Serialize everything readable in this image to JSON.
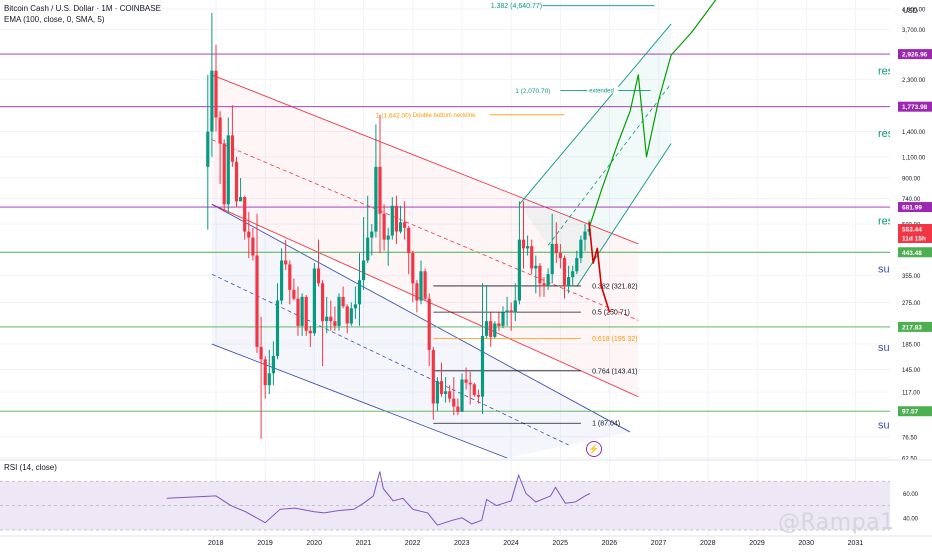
{
  "header": {
    "symbol_line": "Bitcoin Cash / U.S. Dollar · 1M · COINBASE",
    "indicator_line": "EMA (100, close, 0, SMA, 5)"
  },
  "rsi_label": "RSI (14, close)",
  "price_axis_unit": "USD",
  "watermark": "@Rampa1",
  "colors": {
    "up": "#089981",
    "down": "#f23645",
    "resistance": "#9c27b0",
    "support": "#4caf50",
    "fib_golden": "#ff9800",
    "channel_green": "#089981",
    "channel_red": "#f23645",
    "channel_blue": "#3f51b5",
    "projection_up": "#00a000",
    "projection_down": "#d50000",
    "rsi_line": "#7e57c2",
    "rsi_band": "#ede7f6"
  },
  "chart_data": {
    "type": "candlestick",
    "scale": "log",
    "ylim": [
      62.5,
      4900
    ],
    "x_axis_years": [
      "2018",
      "2019",
      "2020",
      "2021",
      "2022",
      "2023",
      "2024",
      "2025",
      "2026",
      "2027",
      "2028",
      "2029",
      "2030",
      "2031"
    ],
    "y_ticks": [
      "4,500.00",
      "3,700.00",
      "2,300.00",
      "1,400.00",
      "1,100.00",
      "900.00",
      "740.00",
      "580.00",
      "355.00",
      "275.00",
      "185.00",
      "145.00",
      "117.00",
      "76.50",
      "62.50"
    ],
    "candles_approx": [
      {
        "date": "2017-11",
        "o": 1000,
        "h": 2400,
        "l": 550,
        "c": 1400
      },
      {
        "date": "2017-12",
        "o": 1400,
        "h": 4330,
        "l": 1100,
        "c": 2500
      },
      {
        "date": "2018-01",
        "o": 2500,
        "h": 3200,
        "l": 1400,
        "c": 1600
      },
      {
        "date": "2018-02",
        "o": 1600,
        "h": 1700,
        "l": 850,
        "c": 1250
      },
      {
        "date": "2018-03",
        "o": 1250,
        "h": 1300,
        "l": 650,
        "c": 700
      },
      {
        "date": "2018-04",
        "o": 700,
        "h": 1600,
        "l": 640,
        "c": 1350
      },
      {
        "date": "2018-05",
        "o": 1350,
        "h": 1800,
        "l": 1000,
        "c": 1050
      },
      {
        "date": "2018-06",
        "o": 1050,
        "h": 1100,
        "l": 680,
        "c": 720
      },
      {
        "date": "2018-07",
        "o": 720,
        "h": 900,
        "l": 720,
        "c": 750
      },
      {
        "date": "2018-08",
        "o": 750,
        "h": 760,
        "l": 500,
        "c": 540
      },
      {
        "date": "2018-09",
        "o": 540,
        "h": 650,
        "l": 420,
        "c": 510
      },
      {
        "date": "2018-10",
        "o": 510,
        "h": 560,
        "l": 410,
        "c": 430
      },
      {
        "date": "2018-11",
        "o": 430,
        "h": 640,
        "l": 170,
        "c": 180
      },
      {
        "date": "2018-12",
        "o": 180,
        "h": 240,
        "l": 75,
        "c": 160
      },
      {
        "date": "2019-01",
        "o": 160,
        "h": 165,
        "l": 110,
        "c": 125
      },
      {
        "date": "2019-02",
        "o": 125,
        "h": 175,
        "l": 115,
        "c": 140
      },
      {
        "date": "2019-03",
        "o": 140,
        "h": 190,
        "l": 125,
        "c": 165
      },
      {
        "date": "2019-04",
        "o": 165,
        "h": 330,
        "l": 160,
        "c": 280
      },
      {
        "date": "2019-05",
        "o": 280,
        "h": 460,
        "l": 270,
        "c": 410
      },
      {
        "date": "2019-06",
        "o": 410,
        "h": 500,
        "l": 375,
        "c": 395
      },
      {
        "date": "2019-07",
        "o": 395,
        "h": 410,
        "l": 270,
        "c": 310
      },
      {
        "date": "2019-08",
        "o": 310,
        "h": 345,
        "l": 280,
        "c": 285
      },
      {
        "date": "2019-09",
        "o": 285,
        "h": 320,
        "l": 200,
        "c": 220
      },
      {
        "date": "2019-10",
        "o": 220,
        "h": 300,
        "l": 200,
        "c": 290
      },
      {
        "date": "2019-11",
        "o": 290,
        "h": 295,
        "l": 200,
        "c": 210
      },
      {
        "date": "2019-12",
        "o": 210,
        "h": 220,
        "l": 180,
        "c": 205
      },
      {
        "date": "2020-01",
        "o": 205,
        "h": 400,
        "l": 200,
        "c": 380
      },
      {
        "date": "2020-02",
        "o": 380,
        "h": 500,
        "l": 320,
        "c": 330
      },
      {
        "date": "2020-03",
        "o": 330,
        "h": 340,
        "l": 150,
        "c": 230
      },
      {
        "date": "2020-04",
        "o": 230,
        "h": 290,
        "l": 205,
        "c": 240
      },
      {
        "date": "2020-05",
        "o": 240,
        "h": 280,
        "l": 210,
        "c": 230
      },
      {
        "date": "2020-06",
        "o": 230,
        "h": 265,
        "l": 210,
        "c": 220
      },
      {
        "date": "2020-07",
        "o": 220,
        "h": 300,
        "l": 210,
        "c": 290
      },
      {
        "date": "2020-08",
        "o": 290,
        "h": 320,
        "l": 260,
        "c": 265
      },
      {
        "date": "2020-09",
        "o": 265,
        "h": 270,
        "l": 205,
        "c": 225
      },
      {
        "date": "2020-10",
        "o": 225,
        "h": 275,
        "l": 220,
        "c": 260
      },
      {
        "date": "2020-11",
        "o": 260,
        "h": 320,
        "l": 235,
        "c": 270
      },
      {
        "date": "2020-12",
        "o": 270,
        "h": 440,
        "l": 220,
        "c": 340
      },
      {
        "date": "2021-01",
        "o": 340,
        "h": 620,
        "l": 310,
        "c": 410
      },
      {
        "date": "2021-02",
        "o": 410,
        "h": 760,
        "l": 400,
        "c": 510
      },
      {
        "date": "2021-03",
        "o": 510,
        "h": 580,
        "l": 430,
        "c": 540
      },
      {
        "date": "2021-04",
        "o": 540,
        "h": 1500,
        "l": 510,
        "c": 1000
      },
      {
        "date": "2021-05",
        "o": 1000,
        "h": 1640,
        "l": 440,
        "c": 640
      },
      {
        "date": "2021-06",
        "o": 640,
        "h": 700,
        "l": 450,
        "c": 500
      },
      {
        "date": "2021-07",
        "o": 500,
        "h": 560,
        "l": 390,
        "c": 520
      },
      {
        "date": "2021-08",
        "o": 520,
        "h": 750,
        "l": 500,
        "c": 690
      },
      {
        "date": "2021-09",
        "o": 690,
        "h": 760,
        "l": 480,
        "c": 540
      },
      {
        "date": "2021-10",
        "o": 540,
        "h": 690,
        "l": 530,
        "c": 590
      },
      {
        "date": "2021-11",
        "o": 590,
        "h": 720,
        "l": 500,
        "c": 560
      },
      {
        "date": "2021-12",
        "o": 560,
        "h": 570,
        "l": 360,
        "c": 440
      },
      {
        "date": "2022-01",
        "o": 440,
        "h": 450,
        "l": 275,
        "c": 330
      },
      {
        "date": "2022-02",
        "o": 330,
        "h": 340,
        "l": 250,
        "c": 280
      },
      {
        "date": "2022-03",
        "o": 280,
        "h": 410,
        "l": 270,
        "c": 370
      },
      {
        "date": "2022-04",
        "o": 370,
        "h": 380,
        "l": 280,
        "c": 285
      },
      {
        "date": "2022-05",
        "o": 285,
        "h": 300,
        "l": 150,
        "c": 175
      },
      {
        "date": "2022-06",
        "o": 175,
        "h": 180,
        "l": 90,
        "c": 105
      },
      {
        "date": "2022-07",
        "o": 105,
        "h": 135,
        "l": 98,
        "c": 130
      },
      {
        "date": "2022-08",
        "o": 130,
        "h": 155,
        "l": 112,
        "c": 115
      },
      {
        "date": "2022-09",
        "o": 115,
        "h": 135,
        "l": 106,
        "c": 118
      },
      {
        "date": "2022-10",
        "o": 118,
        "h": 125,
        "l": 106,
        "c": 110
      },
      {
        "date": "2022-11",
        "o": 110,
        "h": 135,
        "l": 94,
        "c": 102
      },
      {
        "date": "2022-12",
        "o": 102,
        "h": 110,
        "l": 94,
        "c": 97
      },
      {
        "date": "2023-01",
        "o": 97,
        "h": 140,
        "l": 97,
        "c": 132
      },
      {
        "date": "2023-02",
        "o": 132,
        "h": 148,
        "l": 120,
        "c": 128
      },
      {
        "date": "2023-03",
        "o": 128,
        "h": 142,
        "l": 104,
        "c": 126
      },
      {
        "date": "2023-04",
        "o": 126,
        "h": 128,
        "l": 112,
        "c": 114
      },
      {
        "date": "2023-05",
        "o": 114,
        "h": 120,
        "l": 105,
        "c": 112
      },
      {
        "date": "2023-06",
        "o": 112,
        "h": 330,
        "l": 95,
        "c": 200
      },
      {
        "date": "2023-07",
        "o": 200,
        "h": 325,
        "l": 195,
        "c": 230
      },
      {
        "date": "2023-08",
        "o": 230,
        "h": 250,
        "l": 180,
        "c": 198
      },
      {
        "date": "2023-09",
        "o": 198,
        "h": 230,
        "l": 195,
        "c": 225
      },
      {
        "date": "2023-10",
        "o": 225,
        "h": 250,
        "l": 210,
        "c": 220
      },
      {
        "date": "2023-11",
        "o": 220,
        "h": 265,
        "l": 215,
        "c": 250
      },
      {
        "date": "2023-12",
        "o": 250,
        "h": 290,
        "l": 220,
        "c": 255
      },
      {
        "date": "2024-01",
        "o": 255,
        "h": 275,
        "l": 210,
        "c": 250
      },
      {
        "date": "2024-02",
        "o": 250,
        "h": 330,
        "l": 230,
        "c": 280
      },
      {
        "date": "2024-03",
        "o": 280,
        "h": 720,
        "l": 270,
        "c": 500
      },
      {
        "date": "2024-04",
        "o": 500,
        "h": 720,
        "l": 380,
        "c": 460
      },
      {
        "date": "2024-05",
        "o": 460,
        "h": 520,
        "l": 430,
        "c": 470
      },
      {
        "date": "2024-06",
        "o": 470,
        "h": 500,
        "l": 360,
        "c": 380
      },
      {
        "date": "2024-07",
        "o": 380,
        "h": 430,
        "l": 300,
        "c": 390
      },
      {
        "date": "2024-08",
        "o": 390,
        "h": 400,
        "l": 290,
        "c": 330
      },
      {
        "date": "2024-09",
        "o": 330,
        "h": 350,
        "l": 290,
        "c": 320
      },
      {
        "date": "2024-10",
        "o": 320,
        "h": 380,
        "l": 310,
        "c": 360
      },
      {
        "date": "2024-11",
        "o": 360,
        "h": 640,
        "l": 330,
        "c": 480
      },
      {
        "date": "2024-12",
        "o": 480,
        "h": 590,
        "l": 400,
        "c": 440
      },
      {
        "date": "2025-01",
        "o": 440,
        "h": 480,
        "l": 380,
        "c": 420
      },
      {
        "date": "2025-02",
        "o": 420,
        "h": 430,
        "l": 285,
        "c": 320
      },
      {
        "date": "2025-03",
        "o": 320,
        "h": 390,
        "l": 300,
        "c": 350
      },
      {
        "date": "2025-04",
        "o": 350,
        "h": 390,
        "l": 320,
        "c": 370
      },
      {
        "date": "2025-05",
        "o": 370,
        "h": 450,
        "l": 360,
        "c": 420
      },
      {
        "date": "2025-06",
        "o": 420,
        "h": 520,
        "l": 400,
        "c": 500
      },
      {
        "date": "2025-07",
        "o": 500,
        "h": 580,
        "l": 450,
        "c": 540
      },
      {
        "date": "2025-08",
        "o": 540,
        "h": 600,
        "l": 520,
        "c": 553
      }
    ],
    "price_labels": [
      {
        "text": "2,926.96",
        "color": "#9c27b0"
      },
      {
        "text": "1,773.98",
        "color": "#9c27b0"
      },
      {
        "text": "681.99",
        "color": "#9c27b0"
      },
      {
        "text": "553.44",
        "color": "#f23645"
      },
      {
        "text": "11d 15h",
        "color": "#f23645"
      },
      {
        "text": "443.48",
        "color": "#4caf50"
      },
      {
        "text": "217.83",
        "color": "#4caf50"
      },
      {
        "text": "97.57",
        "color": "#4caf50"
      }
    ],
    "horizontal_levels": [
      {
        "value": 2926.96,
        "color": "#9c27b0"
      },
      {
        "value": 1773.98,
        "color": "#9c27b0"
      },
      {
        "value": 681.99,
        "color": "#9c27b0"
      },
      {
        "value": 443.48,
        "color": "#4caf50"
      },
      {
        "value": 217.83,
        "color": "#4caf50"
      },
      {
        "value": 97.57,
        "color": "#4caf50"
      }
    ],
    "side_annotations": [
      {
        "text": "res",
        "value": 2500,
        "color": "#089981"
      },
      {
        "text": "res",
        "value": 1380,
        "color": "#089981"
      },
      {
        "text": "res",
        "value": 600,
        "color": "#089981"
      },
      {
        "text": "sup",
        "value": 380,
        "color": "#3f51b5"
      },
      {
        "text": "sup",
        "value": 180,
        "color": "#3f51b5"
      },
      {
        "text": "sup",
        "value": 86,
        "color": "#3f51b5"
      }
    ],
    "fib_levels": [
      {
        "label": "0.382 (321.82)",
        "value": 321.82,
        "color": "#131722"
      },
      {
        "label": "0.5 (250.71)",
        "value": 250.71,
        "color": "#131722"
      },
      {
        "label": "0.618 (195.32)",
        "value": 195.32,
        "color": "#ff9800"
      },
      {
        "label": "0.764 (143.41)",
        "value": 143.41,
        "color": "#131722"
      },
      {
        "label": "1 (87.04)",
        "value": 87.04,
        "color": "#131722"
      }
    ],
    "ext_levels": [
      {
        "label": "1.382 (4,640.77)",
        "value": 4640.77,
        "color": "#089981"
      },
      {
        "label": "1 (2,070.70)",
        "value": 2070.7,
        "note": "extended",
        "color": "#089981"
      },
      {
        "label": "1 (1,642.00)",
        "value": 1642,
        "note": "Double bottom neckline",
        "color": "#ff9800"
      }
    ],
    "channels": [
      {
        "name": "red",
        "color": "#f23645",
        "p1": [
          "2017-12",
          2400
        ],
        "p2": [
          "2026-08",
          480
        ],
        "lower_p1": [
          "2017-12",
          700
        ],
        "lower_p2": [
          "2026-08",
          112
        ]
      },
      {
        "name": "blue",
        "color": "#3f51b5",
        "p1": [
          "2017-12",
          700
        ],
        "p2": [
          "2026-06",
          80
        ],
        "lower_p1": [
          "2017-12",
          185
        ],
        "lower_p2": [
          "2023-12",
          62.5
        ]
      },
      {
        "name": "rising_green",
        "color": "#089981",
        "p1": [
          "2024-03",
          700
        ],
        "p2": [
          "2027-04",
          3900
        ],
        "lower_p1": [
          "2025-05",
          320
        ],
        "lower_p2": [
          "2027-04",
          1250
        ]
      }
    ],
    "projection_up": [
      [
        "2025-08",
        560
      ],
      [
        "2025-11",
        800
      ],
      [
        "2026-03",
        1250
      ],
      [
        "2026-06",
        1700
      ],
      [
        "2026-08",
        2400
      ],
      [
        "2026-10",
        1100
      ],
      [
        "2027-01",
        1900
      ],
      [
        "2027-04",
        2900
      ],
      [
        "2027-09",
        3600
      ],
      [
        "2028-04",
        5200
      ]
    ],
    "projection_down": [
      [
        "2025-08",
        590
      ],
      [
        "2025-09",
        400
      ],
      [
        "2025-10",
        460
      ],
      [
        "2025-11",
        320
      ],
      [
        "2026-01",
        250
      ]
    ],
    "rsi": {
      "ylim": [
        30,
        85
      ],
      "ticks": [
        "60.00",
        "40.00"
      ],
      "band": [
        30,
        70
      ],
      "values_approx": [
        [
          2017,
          56
        ],
        [
          2018,
          58
        ],
        [
          2018.3,
          50
        ],
        [
          2018.6,
          45
        ],
        [
          2019,
          36
        ],
        [
          2019.3,
          47
        ],
        [
          2019.6,
          48
        ],
        [
          2020,
          45
        ],
        [
          2020.2,
          44
        ],
        [
          2020.5,
          46
        ],
        [
          2020.8,
          47
        ],
        [
          2021,
          52
        ],
        [
          2021.2,
          58
        ],
        [
          2021.33,
          78
        ],
        [
          2021.4,
          64
        ],
        [
          2021.6,
          54
        ],
        [
          2021.8,
          56
        ],
        [
          2022,
          47
        ],
        [
          2022.3,
          44
        ],
        [
          2022.5,
          34
        ],
        [
          2022.8,
          38
        ],
        [
          2023,
          40
        ],
        [
          2023.2,
          35
        ],
        [
          2023.4,
          38
        ],
        [
          2023.5,
          55
        ],
        [
          2023.7,
          50
        ],
        [
          2024,
          54
        ],
        [
          2024.15,
          75
        ],
        [
          2024.3,
          60
        ],
        [
          2024.5,
          53
        ],
        [
          2024.8,
          58
        ],
        [
          2024.9,
          65
        ],
        [
          2025.1,
          52
        ],
        [
          2025.3,
          53
        ],
        [
          2025.5,
          58
        ],
        [
          2025.6,
          60
        ]
      ]
    }
  }
}
